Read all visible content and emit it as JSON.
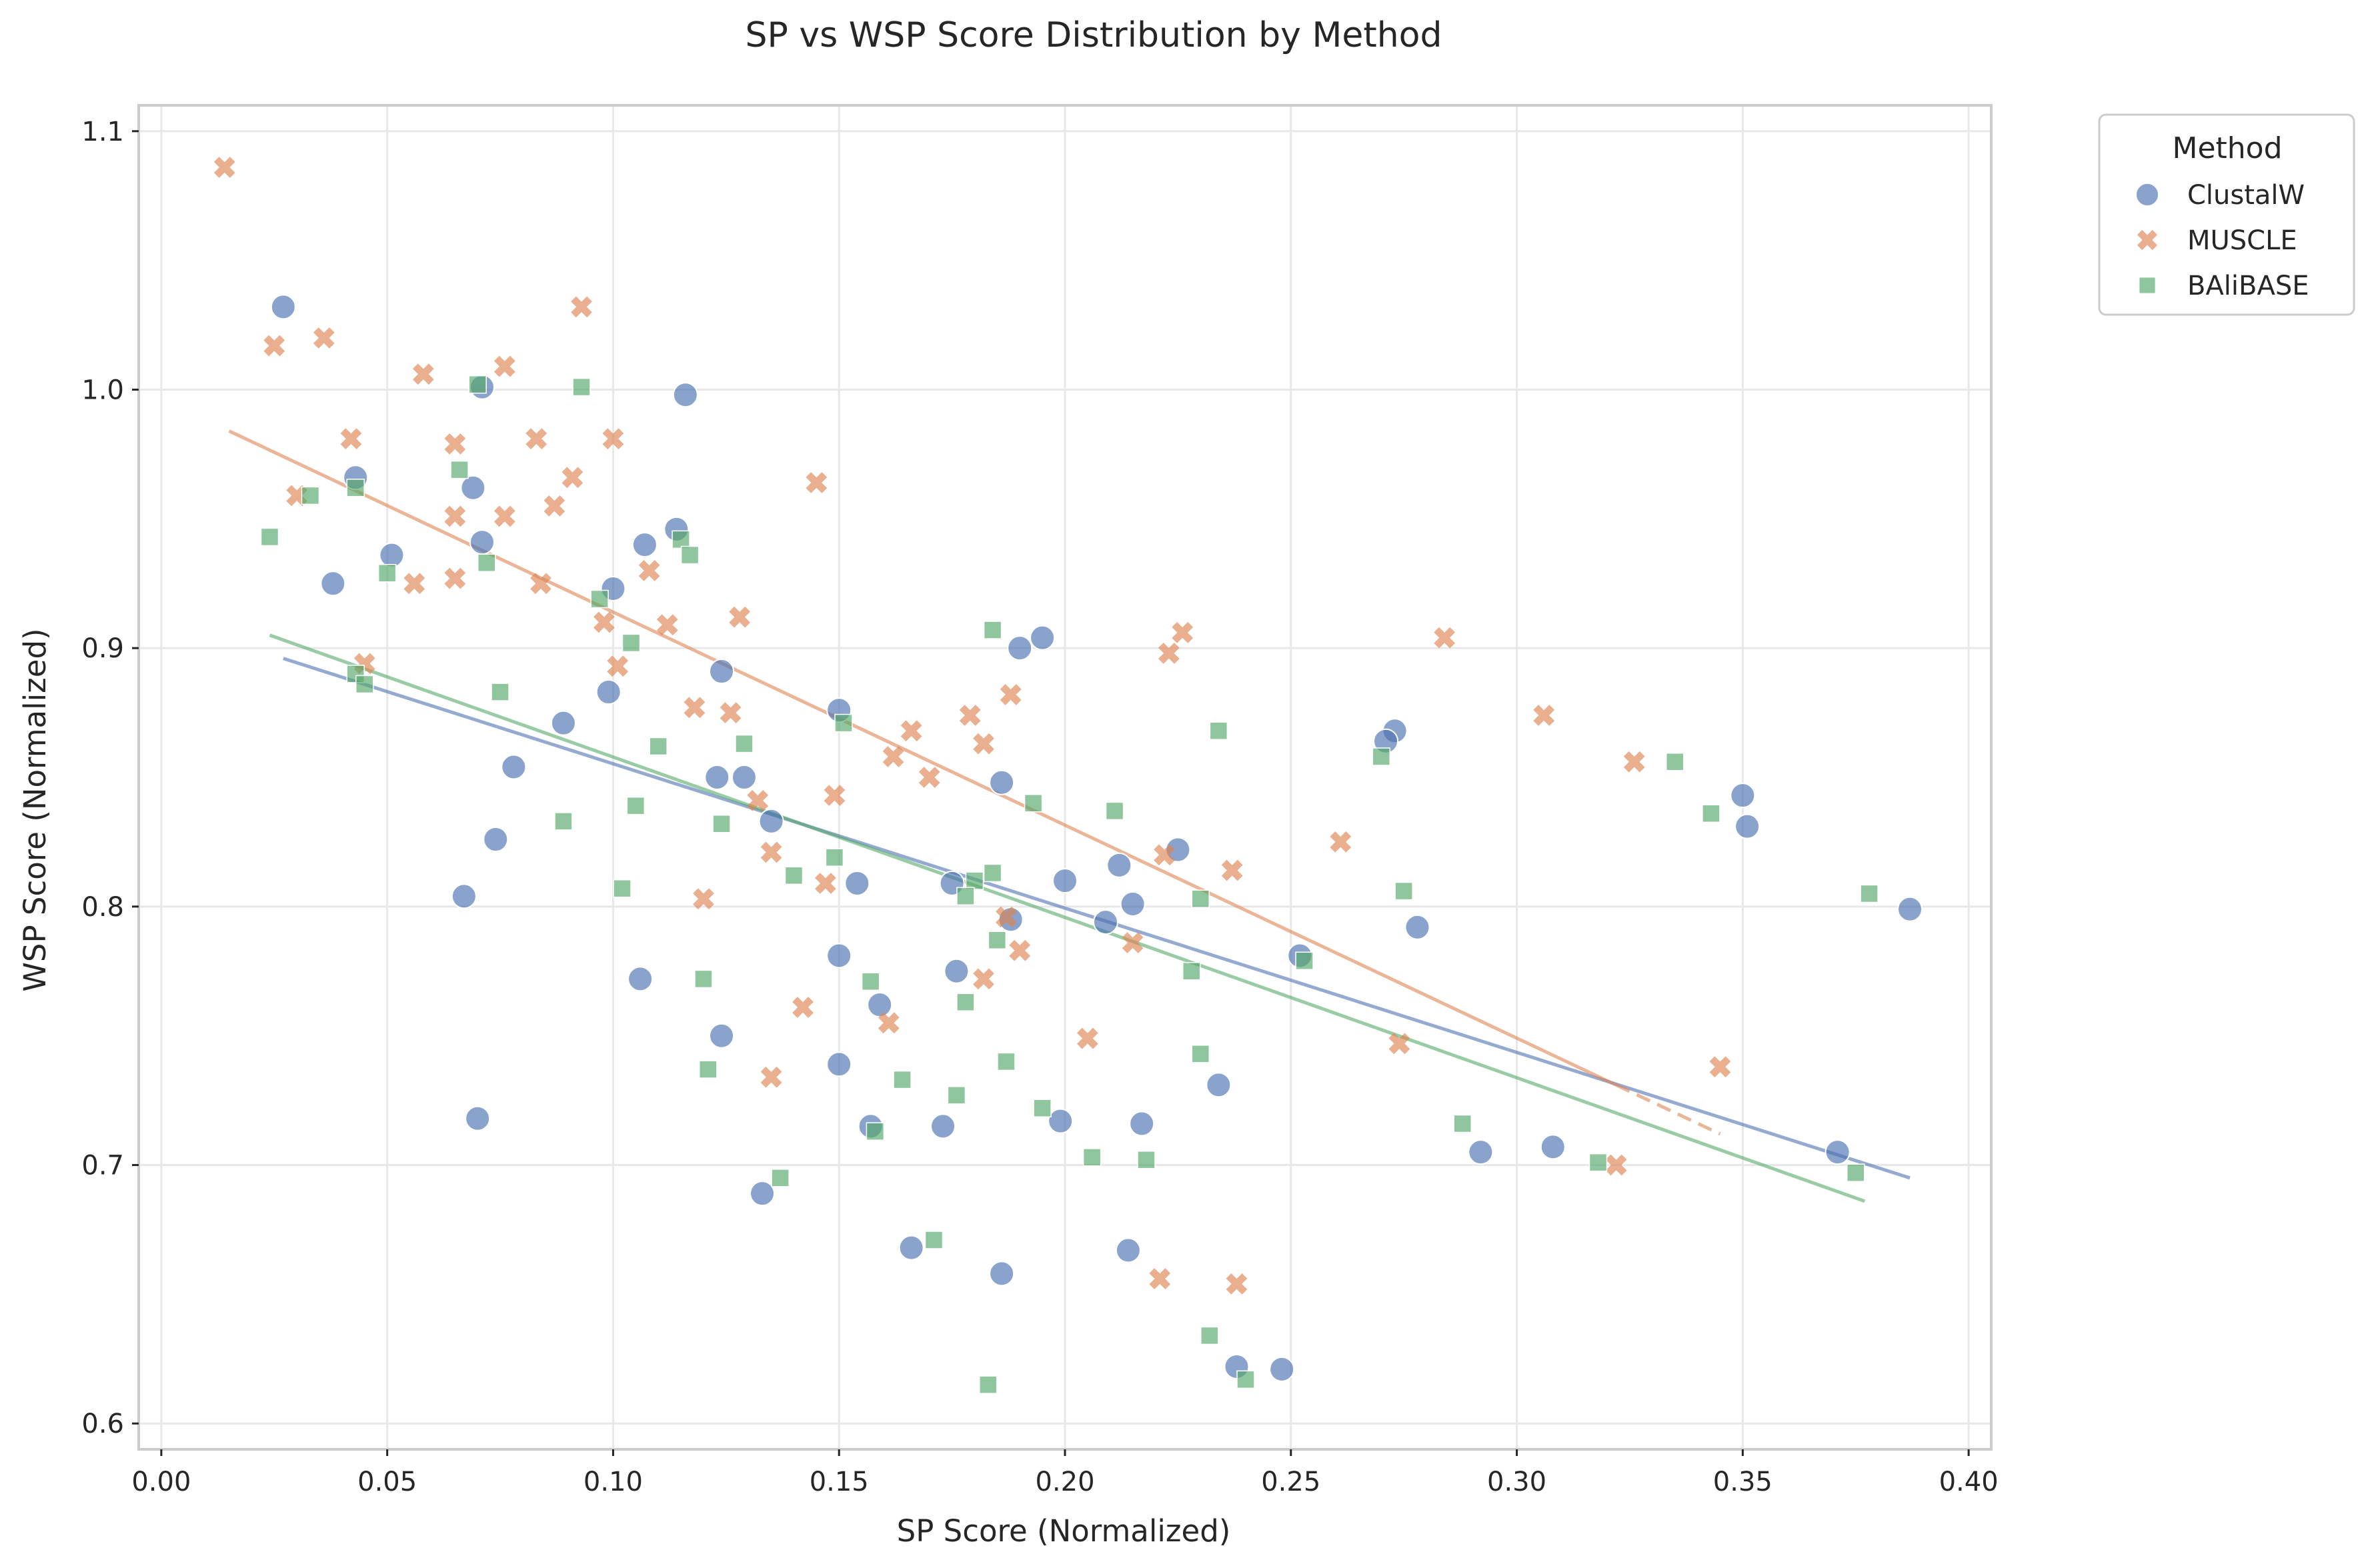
{
  "chart_data": {
    "type": "scatter",
    "title": "SP vs WSP Score Distribution by Method",
    "xlabel": "SP Score (Normalized)",
    "ylabel": "WSP Score (Normalized)",
    "xlim": [
      -0.005,
      0.405
    ],
    "ylim": [
      0.59,
      1.11
    ],
    "xticks": [
      "0.00",
      "0.05",
      "0.10",
      "0.15",
      "0.20",
      "0.25",
      "0.30",
      "0.35",
      "0.40"
    ],
    "xtick_values": [
      0.0,
      0.05,
      0.1,
      0.15,
      0.2,
      0.25,
      0.3,
      0.35,
      0.4
    ],
    "yticks": [
      "0.6",
      "0.7",
      "0.8",
      "0.9",
      "1.0",
      "1.1"
    ],
    "ytick_values": [
      0.6,
      0.7,
      0.8,
      0.9,
      1.0,
      1.1
    ],
    "grid": true,
    "legend": {
      "title": "Method",
      "placement": "outside upper right"
    },
    "series": [
      {
        "name": "ClustalW",
        "marker": "circle",
        "color": "#4c72b0",
        "trend": {
          "x": [
            0.027,
            0.387
          ],
          "y": [
            0.896,
            0.695
          ],
          "dashed_from": null
        },
        "points": [
          [
            0.027,
            1.032
          ],
          [
            0.071,
            1.001
          ],
          [
            0.116,
            0.998
          ],
          [
            0.043,
            0.966
          ],
          [
            0.069,
            0.962
          ],
          [
            0.051,
            0.936
          ],
          [
            0.071,
            0.941
          ],
          [
            0.107,
            0.94
          ],
          [
            0.114,
            0.946
          ],
          [
            0.038,
            0.925
          ],
          [
            0.1,
            0.923
          ],
          [
            0.124,
            0.891
          ],
          [
            0.099,
            0.883
          ],
          [
            0.089,
            0.871
          ],
          [
            0.19,
            0.9
          ],
          [
            0.195,
            0.904
          ],
          [
            0.15,
            0.876
          ],
          [
            0.078,
            0.854
          ],
          [
            0.123,
            0.85
          ],
          [
            0.129,
            0.85
          ],
          [
            0.186,
            0.848
          ],
          [
            0.135,
            0.833
          ],
          [
            0.074,
            0.826
          ],
          [
            0.273,
            0.868
          ],
          [
            0.271,
            0.864
          ],
          [
            0.35,
            0.843
          ],
          [
            0.351,
            0.831
          ],
          [
            0.225,
            0.822
          ],
          [
            0.212,
            0.816
          ],
          [
            0.2,
            0.81
          ],
          [
            0.154,
            0.809
          ],
          [
            0.175,
            0.809
          ],
          [
            0.067,
            0.804
          ],
          [
            0.215,
            0.801
          ],
          [
            0.209,
            0.794
          ],
          [
            0.188,
            0.795
          ],
          [
            0.278,
            0.792
          ],
          [
            0.387,
            0.799
          ],
          [
            0.15,
            0.781
          ],
          [
            0.252,
            0.781
          ],
          [
            0.176,
            0.775
          ],
          [
            0.106,
            0.772
          ],
          [
            0.159,
            0.762
          ],
          [
            0.124,
            0.75
          ],
          [
            0.15,
            0.739
          ],
          [
            0.234,
            0.731
          ],
          [
            0.07,
            0.718
          ],
          [
            0.157,
            0.715
          ],
          [
            0.173,
            0.715
          ],
          [
            0.199,
            0.717
          ],
          [
            0.217,
            0.716
          ],
          [
            0.371,
            0.705
          ],
          [
            0.292,
            0.705
          ],
          [
            0.308,
            0.707
          ],
          [
            0.133,
            0.689
          ],
          [
            0.166,
            0.668
          ],
          [
            0.214,
            0.667
          ],
          [
            0.186,
            0.658
          ],
          [
            0.238,
            0.622
          ],
          [
            0.248,
            0.621
          ]
        ]
      },
      {
        "name": "MUSCLE",
        "marker": "x",
        "color": "#dd8452",
        "trend": {
          "x": [
            0.015,
            0.345
          ],
          "y": [
            0.984,
            0.712
          ],
          "dashed_from": 0.322
        },
        "points": [
          [
            0.014,
            1.086
          ],
          [
            0.093,
            1.032
          ],
          [
            0.036,
            1.02
          ],
          [
            0.025,
            1.017
          ],
          [
            0.076,
            1.009
          ],
          [
            0.058,
            1.006
          ],
          [
            0.042,
            0.981
          ],
          [
            0.083,
            0.981
          ],
          [
            0.1,
            0.981
          ],
          [
            0.065,
            0.979
          ],
          [
            0.091,
            0.966
          ],
          [
            0.145,
            0.964
          ],
          [
            0.03,
            0.959
          ],
          [
            0.087,
            0.955
          ],
          [
            0.076,
            0.951
          ],
          [
            0.065,
            0.951
          ],
          [
            0.108,
            0.93
          ],
          [
            0.065,
            0.927
          ],
          [
            0.056,
            0.925
          ],
          [
            0.084,
            0.925
          ],
          [
            0.128,
            0.912
          ],
          [
            0.112,
            0.909
          ],
          [
            0.098,
            0.91
          ],
          [
            0.226,
            0.906
          ],
          [
            0.284,
            0.904
          ],
          [
            0.223,
            0.898
          ],
          [
            0.045,
            0.894
          ],
          [
            0.101,
            0.893
          ],
          [
            0.188,
            0.882
          ],
          [
            0.118,
            0.877
          ],
          [
            0.126,
            0.875
          ],
          [
            0.179,
            0.874
          ],
          [
            0.306,
            0.874
          ],
          [
            0.166,
            0.868
          ],
          [
            0.182,
            0.863
          ],
          [
            0.162,
            0.858
          ],
          [
            0.326,
            0.856
          ],
          [
            0.17,
            0.85
          ],
          [
            0.149,
            0.843
          ],
          [
            0.132,
            0.841
          ],
          [
            0.261,
            0.825
          ],
          [
            0.135,
            0.821
          ],
          [
            0.222,
            0.82
          ],
          [
            0.237,
            0.814
          ],
          [
            0.147,
            0.809
          ],
          [
            0.12,
            0.803
          ],
          [
            0.187,
            0.796
          ],
          [
            0.215,
            0.786
          ],
          [
            0.19,
            0.783
          ],
          [
            0.182,
            0.772
          ],
          [
            0.142,
            0.761
          ],
          [
            0.161,
            0.755
          ],
          [
            0.205,
            0.749
          ],
          [
            0.274,
            0.747
          ],
          [
            0.345,
            0.738
          ],
          [
            0.135,
            0.734
          ],
          [
            0.322,
            0.7
          ],
          [
            0.221,
            0.656
          ],
          [
            0.238,
            0.654
          ]
        ]
      },
      {
        "name": "BAliBASE",
        "marker": "square",
        "color": "#55a868",
        "trend": {
          "x": [
            0.024,
            0.377
          ],
          "y": [
            0.905,
            0.686
          ],
          "dashed_from": null
        },
        "points": [
          [
            0.07,
            1.002
          ],
          [
            0.093,
            1.001
          ],
          [
            0.066,
            0.969
          ],
          [
            0.043,
            0.962
          ],
          [
            0.033,
            0.959
          ],
          [
            0.024,
            0.943
          ],
          [
            0.115,
            0.942
          ],
          [
            0.117,
            0.936
          ],
          [
            0.072,
            0.933
          ],
          [
            0.05,
            0.929
          ],
          [
            0.097,
            0.919
          ],
          [
            0.184,
            0.907
          ],
          [
            0.104,
            0.902
          ],
          [
            0.043,
            0.89
          ],
          [
            0.045,
            0.886
          ],
          [
            0.075,
            0.883
          ],
          [
            0.151,
            0.871
          ],
          [
            0.234,
            0.868
          ],
          [
            0.129,
            0.863
          ],
          [
            0.11,
            0.862
          ],
          [
            0.27,
            0.858
          ],
          [
            0.335,
            0.856
          ],
          [
            0.193,
            0.84
          ],
          [
            0.105,
            0.839
          ],
          [
            0.211,
            0.837
          ],
          [
            0.343,
            0.836
          ],
          [
            0.089,
            0.833
          ],
          [
            0.124,
            0.832
          ],
          [
            0.149,
            0.819
          ],
          [
            0.184,
            0.813
          ],
          [
            0.14,
            0.812
          ],
          [
            0.18,
            0.81
          ],
          [
            0.102,
            0.807
          ],
          [
            0.275,
            0.806
          ],
          [
            0.178,
            0.804
          ],
          [
            0.378,
            0.805
          ],
          [
            0.23,
            0.803
          ],
          [
            0.185,
            0.787
          ],
          [
            0.253,
            0.779
          ],
          [
            0.228,
            0.775
          ],
          [
            0.12,
            0.772
          ],
          [
            0.157,
            0.771
          ],
          [
            0.178,
            0.763
          ],
          [
            0.23,
            0.743
          ],
          [
            0.187,
            0.74
          ],
          [
            0.121,
            0.737
          ],
          [
            0.164,
            0.733
          ],
          [
            0.176,
            0.727
          ],
          [
            0.195,
            0.722
          ],
          [
            0.158,
            0.713
          ],
          [
            0.288,
            0.716
          ],
          [
            0.206,
            0.703
          ],
          [
            0.218,
            0.702
          ],
          [
            0.318,
            0.701
          ],
          [
            0.375,
            0.697
          ],
          [
            0.137,
            0.695
          ],
          [
            0.171,
            0.671
          ],
          [
            0.232,
            0.634
          ],
          [
            0.24,
            0.617
          ],
          [
            0.183,
            0.615
          ]
        ]
      }
    ]
  }
}
